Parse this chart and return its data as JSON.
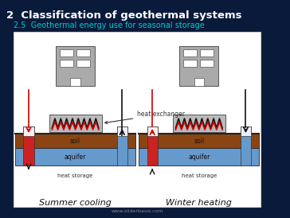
{
  "title": "2  Classification of geothermal systems",
  "subtitle": "2.5  Geothermal energy use for seasonal storage",
  "background_color": "#0a1a3a",
  "title_color": "#ffffff",
  "subtitle_color": "#00cccc",
  "panel_bg": "#ffffff",
  "panel_border": "#cccccc",
  "website": "www.sliderbasis.com",
  "website_color": "#888888",
  "soil_color": "#8B4513",
  "aquifer_color": "#6699cc",
  "ground_line_color": "#222222",
  "building_color": "#aaaaaa",
  "building_border": "#555555",
  "heat_exchanger_bg": "#bbbbbb",
  "red_pipe": "#cc0000",
  "black_pipe": "#111111",
  "cold_well_color": "#6699cc",
  "hot_well_color": "#cc2222",
  "label_color": "#333333",
  "summer_label": "Summer cooling",
  "winter_label": "Winter heating",
  "soil_label": "soil",
  "aquifer_label": "aquifer",
  "heat_storage_label": "heat storage",
  "heat_exchanger_label": "heat exchanger"
}
